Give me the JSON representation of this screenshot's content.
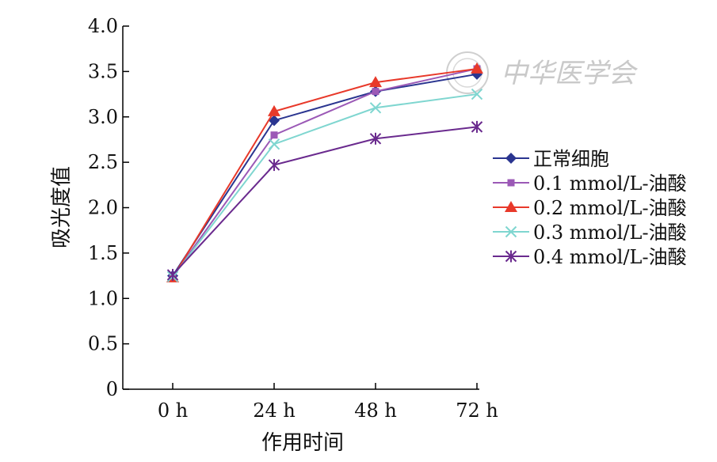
{
  "chart_data": {
    "type": "line",
    "title": "",
    "xlabel": "作用时间",
    "ylabel": "吸光度值",
    "categories": [
      "0 h",
      "24 h",
      "48 h",
      "72 h"
    ],
    "ylim": [
      0,
      4.0
    ],
    "yticks": [
      "0",
      "0.5",
      "1.0",
      "1.5",
      "2.0",
      "2.5",
      "3.0",
      "3.5",
      "4.0"
    ],
    "ytick_values": [
      0,
      0.5,
      1.0,
      1.5,
      2.0,
      2.5,
      3.0,
      3.5,
      4.0
    ],
    "grid": false,
    "legend_position": "right",
    "series": [
      {
        "name": "正常细胞",
        "values": [
          1.25,
          2.96,
          3.28,
          3.47
        ],
        "color": "#2a3590",
        "marker": "diamond"
      },
      {
        "name": "0.1 mmol/L-油酸",
        "values": [
          1.24,
          2.8,
          3.28,
          3.53
        ],
        "color": "#9b59b6",
        "marker": "square"
      },
      {
        "name": "0.2 mmol/L-油酸",
        "values": [
          1.23,
          3.06,
          3.38,
          3.53
        ],
        "color": "#e8392a",
        "marker": "triangle"
      },
      {
        "name": "0.3 mmol/L-油酸",
        "values": [
          1.24,
          2.7,
          3.1,
          3.25
        ],
        "color": "#7fd6d0",
        "marker": "x"
      },
      {
        "name": "0.4 mmol/L-油酸",
        "values": [
          1.26,
          2.47,
          2.76,
          2.89
        ],
        "color": "#6a2a8e",
        "marker": "star"
      }
    ]
  },
  "watermark": {
    "text": "中华医学会",
    "icon": "seal-emblem-icon"
  }
}
